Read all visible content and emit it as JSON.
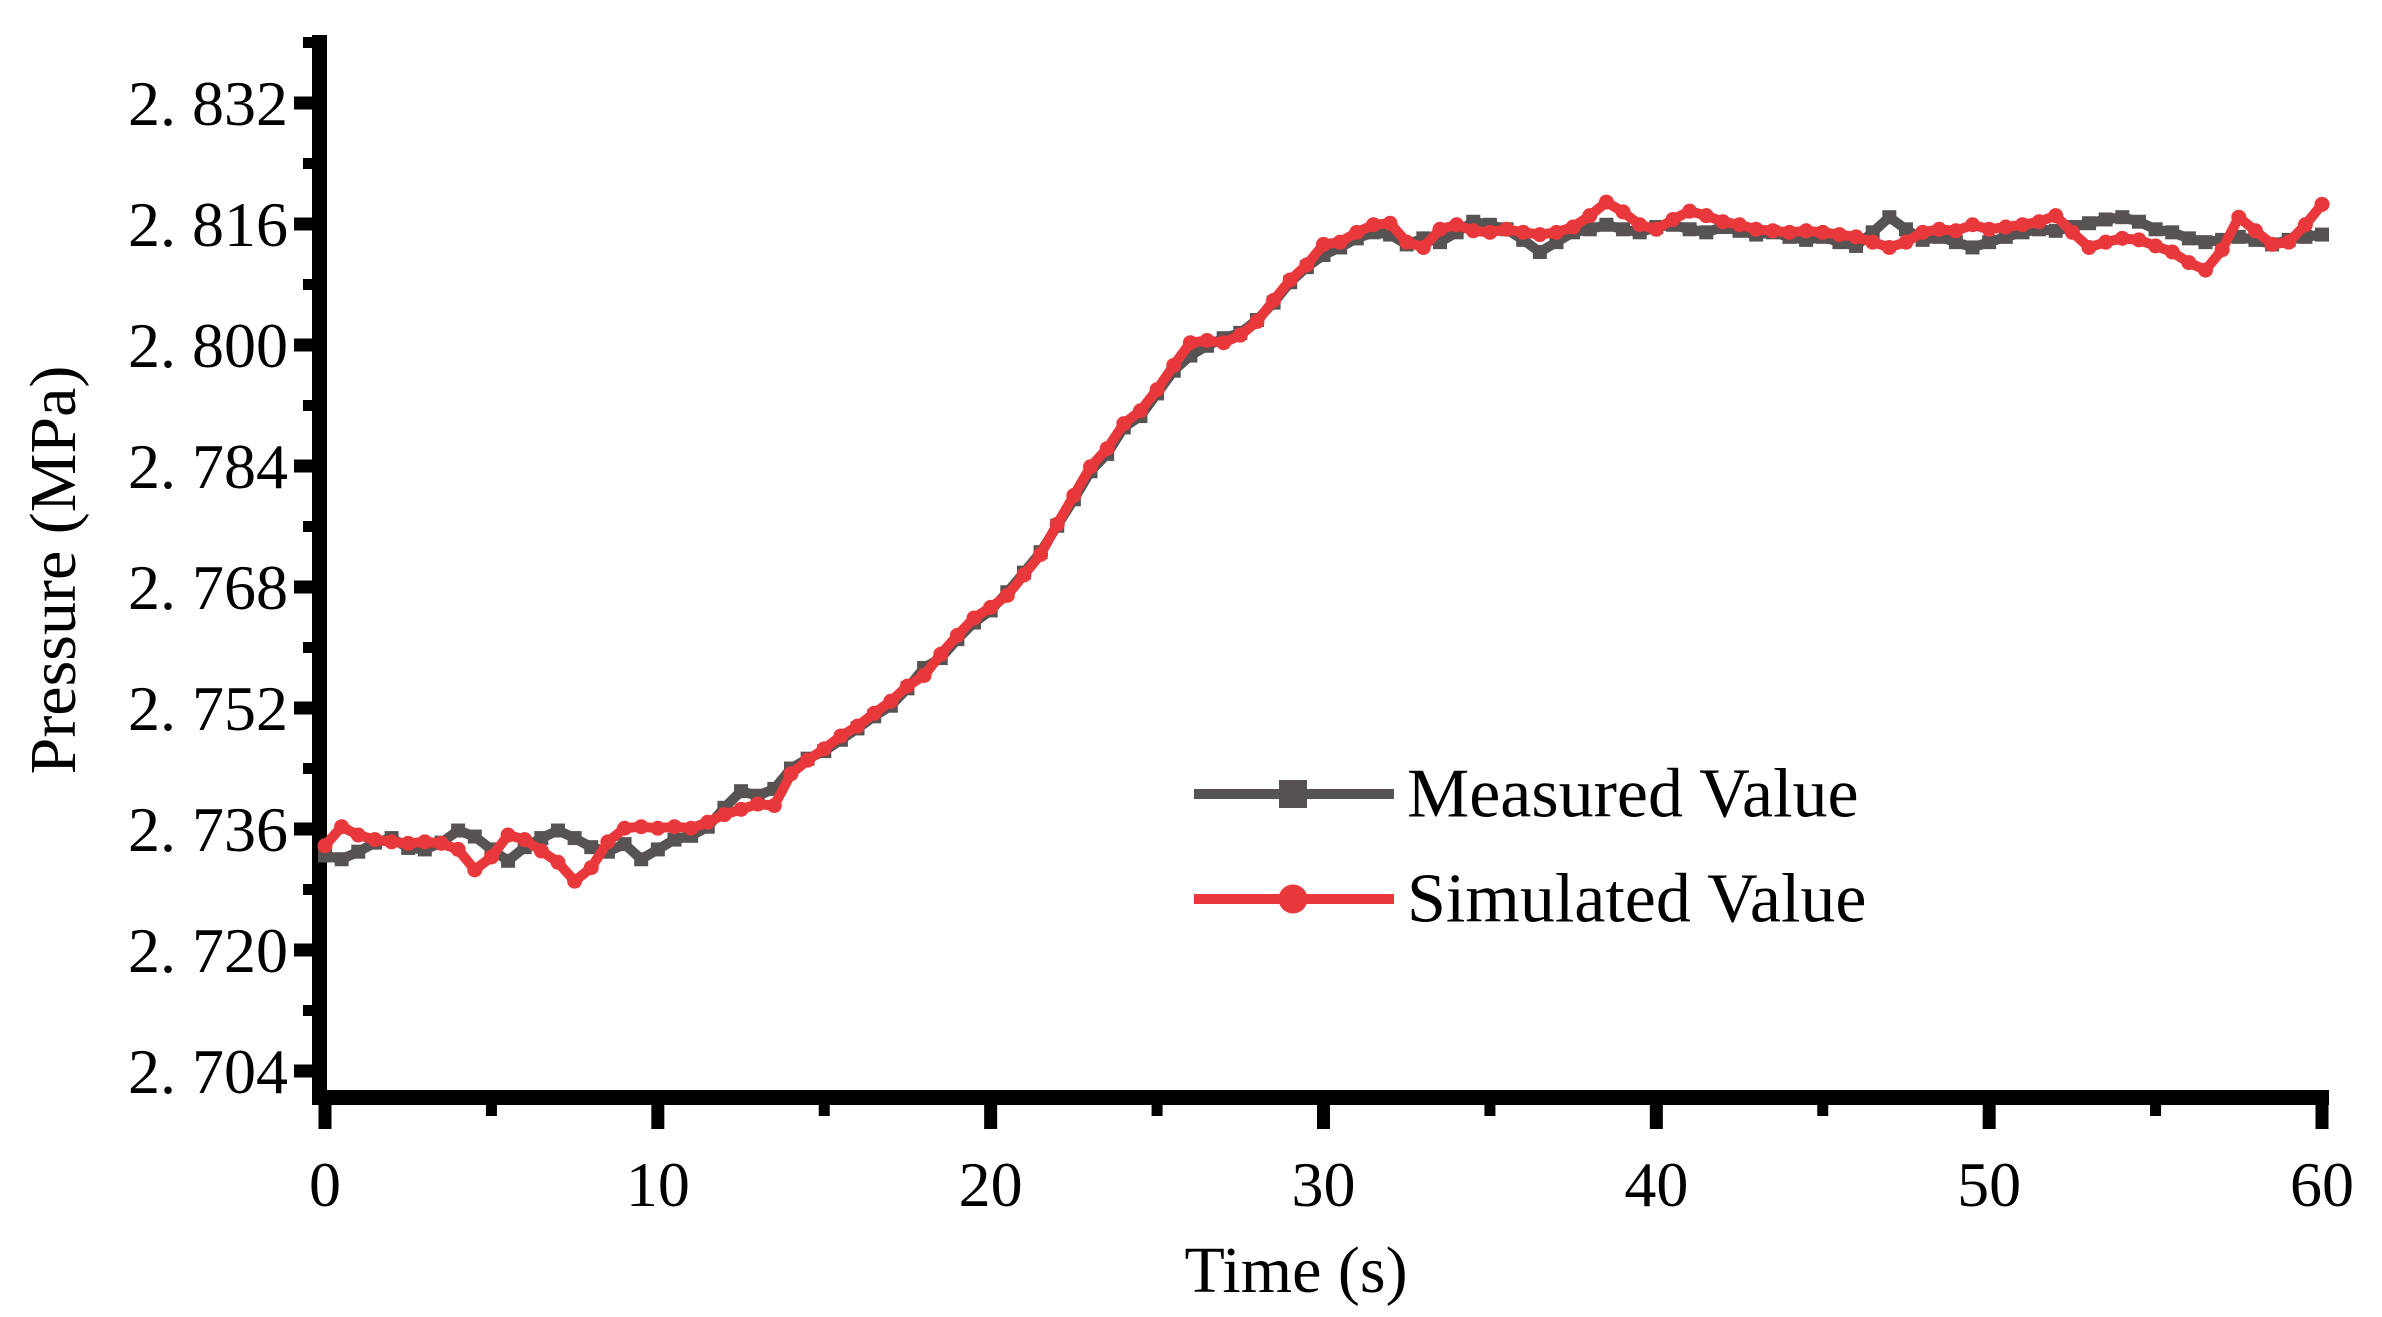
{
  "figure": {
    "background": "#ffffff",
    "axis_color": "#000000"
  },
  "axes": {
    "x": {
      "title": "Time (s)",
      "min": 0,
      "max": 60,
      "major_ticks": [
        0,
        10,
        20,
        30,
        40,
        50,
        60
      ],
      "minor_ticks": [
        5,
        15,
        25,
        35,
        45,
        55
      ],
      "tick_labels": [
        "0",
        "10",
        "20",
        "30",
        "40",
        "50",
        "60"
      ]
    },
    "y": {
      "title": "Pressure (MPa)",
      "min": 2.704,
      "max": 2.832,
      "major_ticks": [
        2.704,
        2.72,
        2.736,
        2.752,
        2.768,
        2.784,
        2.8,
        2.816,
        2.832
      ],
      "minor_ticks": [
        2.712,
        2.728,
        2.744,
        2.76,
        2.776,
        2.792,
        2.808,
        2.824,
        2.84
      ],
      "tick_labels": [
        "2. 704",
        "2. 720",
        "2. 736",
        "2. 752",
        "2. 768",
        "2. 784",
        "2. 800",
        "2. 816",
        "2. 832"
      ]
    }
  },
  "legend": {
    "position": "inside-right",
    "items": [
      {
        "label": "Measured Value",
        "color": "#565352",
        "marker": "square"
      },
      {
        "label": "Simulated Value",
        "color": "#e9383b",
        "marker": "circle"
      }
    ]
  },
  "chart_data": {
    "type": "line",
    "title": "",
    "xlabel": "Time (s)",
    "ylabel": "Pressure (MPa)",
    "xlim": [
      0,
      60
    ],
    "ylim": [
      2.704,
      2.832
    ],
    "grid": false,
    "legend_position": "inside-right",
    "x": [
      0,
      0.5,
      1,
      1.5,
      2,
      2.5,
      3,
      3.5,
      4,
      4.5,
      5,
      5.5,
      6,
      6.5,
      7,
      7.5,
      8,
      8.5,
      9,
      9.5,
      10,
      10.5,
      11,
      11.5,
      12,
      12.5,
      13,
      13.5,
      14,
      14.5,
      15,
      15.5,
      16,
      16.5,
      17,
      17.5,
      18,
      18.5,
      19,
      19.5,
      20,
      20.5,
      21,
      21.5,
      22,
      22.5,
      23,
      23.5,
      24,
      24.5,
      25,
      25.5,
      26,
      26.5,
      27,
      27.5,
      28,
      28.5,
      29,
      29.5,
      30,
      30.5,
      31,
      31.5,
      32,
      32.5,
      33,
      33.5,
      34,
      34.5,
      35,
      35.5,
      36,
      36.5,
      37,
      37.5,
      38,
      38.5,
      39,
      39.5,
      40,
      40.5,
      41,
      41.5,
      42,
      42.5,
      43,
      43.5,
      44,
      44.5,
      45,
      45.5,
      46,
      46.5,
      47,
      47.5,
      48,
      48.5,
      49,
      49.5,
      50,
      50.5,
      51,
      51.5,
      52,
      52.5,
      53,
      53.5,
      54,
      54.5,
      55,
      55.5,
      56,
      56.5,
      57,
      57.5,
      58,
      58.5,
      59,
      59.5,
      60
    ],
    "series": [
      {
        "name": "Measured Value",
        "color": "#565352",
        "marker": "square",
        "values": [
          2.7325,
          2.732,
          2.733,
          2.7342,
          2.7348,
          2.7335,
          2.7333,
          2.7342,
          2.7358,
          2.735,
          2.7333,
          2.7318,
          2.7336,
          2.7348,
          2.7358,
          2.7348,
          2.7336,
          2.733,
          2.734,
          2.732,
          2.7333,
          2.7346,
          2.7351,
          2.7363,
          2.7388,
          2.741,
          2.7404,
          2.7413,
          2.744,
          2.7453,
          2.7463,
          2.7478,
          2.7493,
          2.7509,
          2.7523,
          2.7546,
          2.7573,
          2.7586,
          2.7611,
          2.7633,
          2.7649,
          2.7673,
          2.7699,
          2.7726,
          2.7761,
          2.7796,
          2.7833,
          2.7856,
          2.7891,
          2.7906,
          2.7936,
          2.7966,
          2.7986,
          2.7999,
          2.8009,
          2.8016,
          2.8033,
          2.8056,
          2.8083,
          2.8103,
          2.8119,
          2.8129,
          2.8141,
          2.8149,
          2.8146,
          2.8133,
          2.8141,
          2.8136,
          2.8149,
          2.8163,
          2.8159,
          2.8153,
          2.8139,
          2.8123,
          2.8136,
          2.8149,
          2.8153,
          2.8159,
          2.8153,
          2.8149,
          2.8156,
          2.8159,
          2.8153,
          2.8149,
          2.8156,
          2.8151,
          2.8146,
          2.8149,
          2.8143,
          2.8139,
          2.8143,
          2.8136,
          2.8131,
          2.8149,
          2.8169,
          2.8153,
          2.8139,
          2.8143,
          2.8136,
          2.8129,
          2.8136,
          2.8143,
          2.8149,
          2.8153,
          2.8151,
          2.8156,
          2.8161,
          2.8166,
          2.8169,
          2.8163,
          2.8153,
          2.8149,
          2.8141,
          2.8136,
          2.8139,
          2.8143,
          2.8139,
          2.8133,
          2.8139,
          2.8143,
          2.8146
        ]
      },
      {
        "name": "Simulated Value",
        "color": "#e9383b",
        "marker": "circle",
        "values": [
          2.7338,
          2.7363,
          2.7352,
          2.7346,
          2.7343,
          2.7341,
          2.7343,
          2.7341,
          2.7333,
          2.7306,
          2.7323,
          2.7352,
          2.7346,
          2.7331,
          2.7316,
          2.7291,
          2.7309,
          2.7343,
          2.7361,
          2.7363,
          2.7361,
          2.7363,
          2.7361,
          2.7369,
          2.7379,
          2.7386,
          2.7393,
          2.7391,
          2.7433,
          2.7451,
          2.7466,
          2.7483,
          2.7496,
          2.7513,
          2.7529,
          2.7549,
          2.7563,
          2.7591,
          2.7616,
          2.7639,
          2.7653,
          2.7669,
          2.7696,
          2.7723,
          2.7763,
          2.7801,
          2.7839,
          2.7863,
          2.7896,
          2.7913,
          2.7941,
          2.7973,
          2.8003,
          2.8006,
          2.8003,
          2.8013,
          2.8031,
          2.8059,
          2.8086,
          2.8106,
          2.8133,
          2.8136,
          2.8149,
          2.8159,
          2.8161,
          2.8136,
          2.8129,
          2.8153,
          2.8159,
          2.8151,
          2.8149,
          2.8153,
          2.8149,
          2.8146,
          2.8149,
          2.8156,
          2.8171,
          2.8189,
          2.8176,
          2.8159,
          2.8153,
          2.8166,
          2.8177,
          2.8171,
          2.8163,
          2.8159,
          2.8153,
          2.8151,
          2.8149,
          2.8151,
          2.8149,
          2.8146,
          2.8143,
          2.8136,
          2.8129,
          2.8136,
          2.8149,
          2.8153,
          2.8151,
          2.8159,
          2.8153,
          2.8156,
          2.8159,
          2.8163,
          2.8171,
          2.8149,
          2.8129,
          2.8136,
          2.8141,
          2.8139,
          2.8131,
          2.8123,
          2.8109,
          2.8099,
          2.8126,
          2.8169,
          2.8151,
          2.8133,
          2.8136,
          2.8159,
          2.8186
        ]
      }
    ]
  }
}
